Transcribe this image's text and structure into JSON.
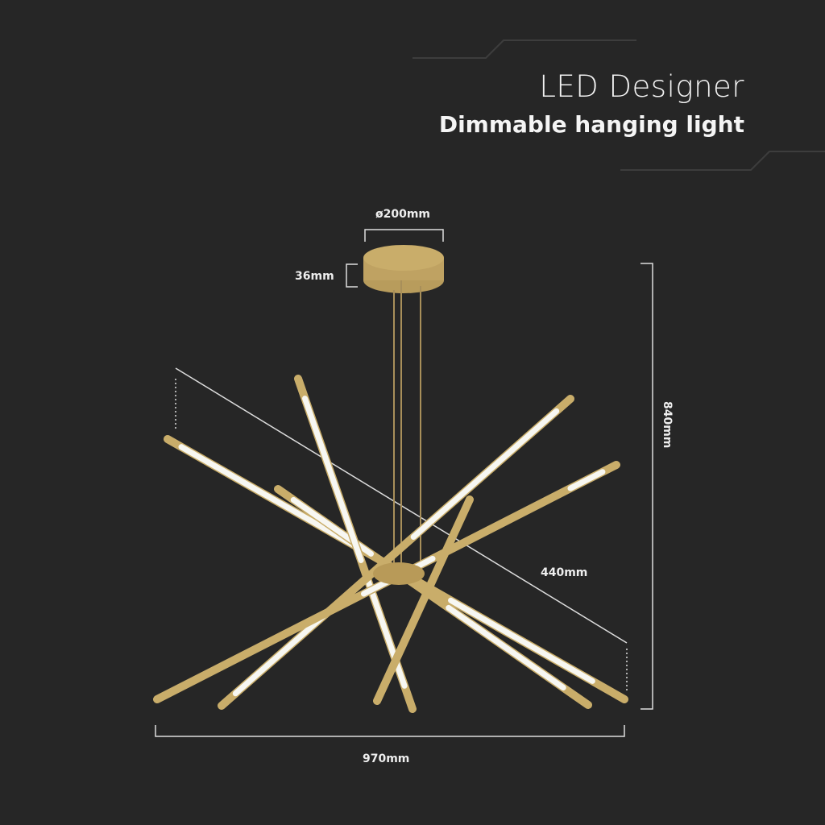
{
  "header": {
    "title": "LED Designer",
    "subtitle": "Dimmable hanging light"
  },
  "dimensions": {
    "canopy_diameter": "ø200mm",
    "canopy_height": "36mm",
    "total_height": "840mm",
    "rod_length": "440mm",
    "total_width": "970mm"
  },
  "colors": {
    "background": "#262626",
    "gold": "#c9ad6a",
    "led": "#f7f7f2",
    "dimension_lines": "#dddddd"
  }
}
